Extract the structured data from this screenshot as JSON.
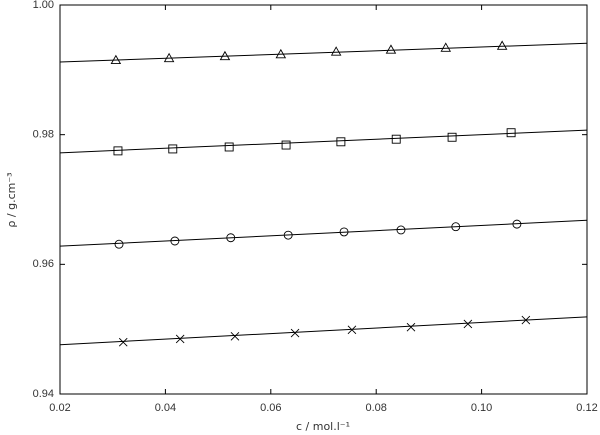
{
  "chart_data": {
    "type": "scatter",
    "xlabel": "c / mol.l⁻¹",
    "ylabel": "ρ / g.cm⁻³",
    "xlim": [
      0.02,
      0.12
    ],
    "ylim": [
      0.94,
      1.0
    ],
    "xticks": [
      0.02,
      0.04,
      0.06,
      0.08,
      {
        "value": 0.1,
        "label": "0.10"
      },
      0.12
    ],
    "yticks": [
      0.94,
      0.96,
      0.98,
      {
        "value": 1.0,
        "label": "1.00"
      }
    ],
    "color": "#000000",
    "series": [
      {
        "marker": "triangle",
        "x": [
          0.0306,
          0.0407,
          0.0513,
          0.0619,
          0.0724,
          0.0828,
          0.0932,
          0.1039
        ],
        "values": [
          0.9915,
          0.9918,
          0.9921,
          0.9924,
          0.9928,
          0.9931,
          0.9934,
          0.9937
        ],
        "fit_x": [
          0.02,
          0.12
        ],
        "fit_values": [
          0.9912,
          0.9941
        ]
      },
      {
        "marker": "square",
        "x": [
          0.031,
          0.0414,
          0.0521,
          0.0629,
          0.0733,
          0.0838,
          0.0944,
          0.1056
        ],
        "values": [
          0.9775,
          0.9778,
          0.9781,
          0.9784,
          0.9789,
          0.9793,
          0.9796,
          0.9803
        ],
        "fit_x": [
          0.02,
          0.12
        ],
        "fit_values": [
          0.9772,
          0.9807
        ]
      },
      {
        "marker": "circle",
        "x": [
          0.0312,
          0.0418,
          0.0524,
          0.0633,
          0.0739,
          0.0847,
          0.0951,
          0.1067
        ],
        "values": [
          0.9631,
          0.9636,
          0.9641,
          0.9645,
          0.965,
          0.9653,
          0.9658,
          0.9662
        ],
        "fit_x": [
          0.02,
          0.12
        ],
        "fit_values": [
          0.9628,
          0.9668
        ]
      },
      {
        "marker": "cross",
        "x": [
          0.032,
          0.0428,
          0.0532,
          0.0646,
          0.0754,
          0.0866,
          0.0974,
          0.1084
        ],
        "values": [
          0.948,
          0.9485,
          0.9489,
          0.9494,
          0.9499,
          0.9503,
          0.9508,
          0.9514
        ],
        "fit_x": [
          0.02,
          0.12
        ],
        "fit_values": [
          0.9476,
          0.9519
        ]
      }
    ]
  }
}
